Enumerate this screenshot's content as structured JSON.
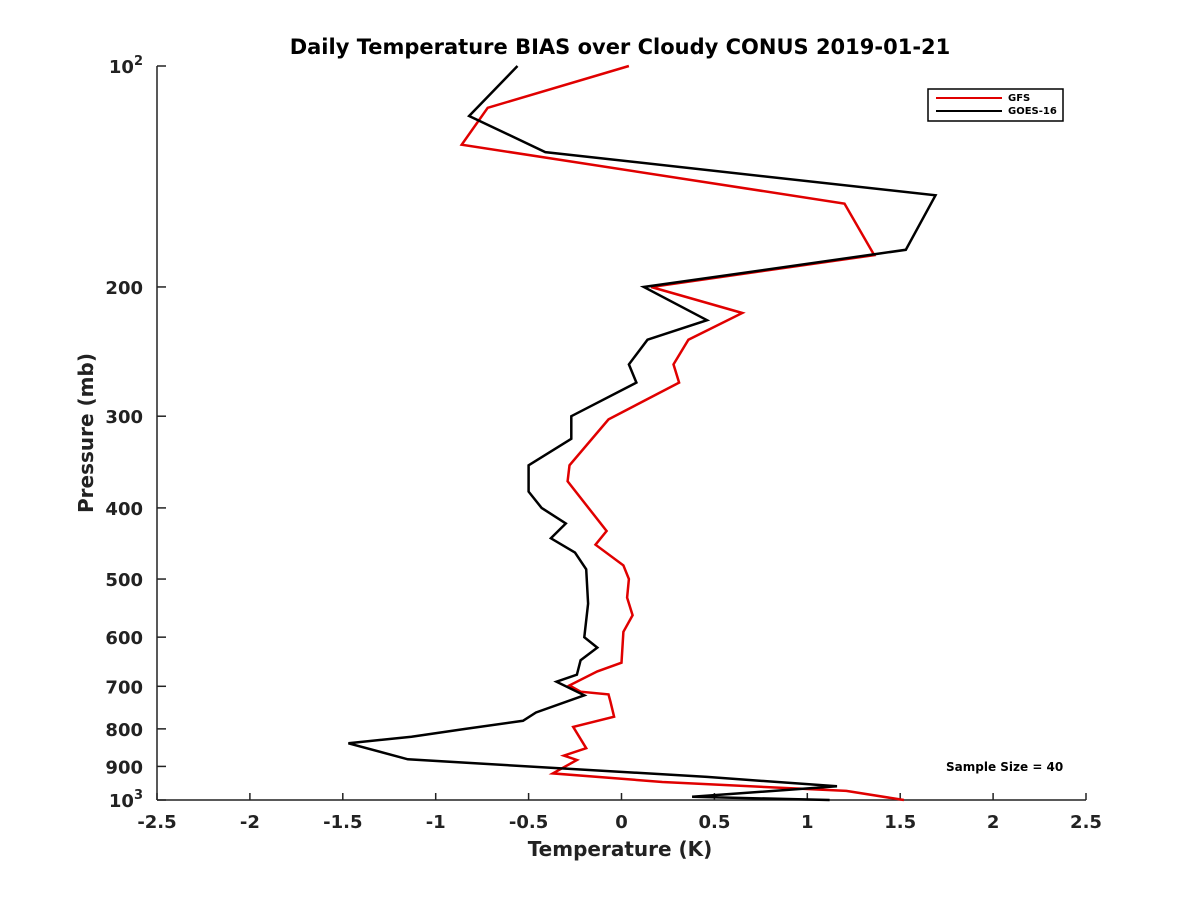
{
  "chart_data": {
    "type": "line",
    "title": "Daily Temperature BIAS over Cloudy CONUS 2019-01-21",
    "xlabel": "Temperature (K)",
    "ylabel": "Pressure (mb)",
    "xlim": [
      -2.5,
      2.5
    ],
    "ylim": [
      100,
      1000
    ],
    "yscale": "log",
    "y_reversed": true,
    "grid": false,
    "legend_position": "top-right",
    "x_ticks": [
      "-2.5",
      "-2",
      "-1.5",
      "-1",
      "-0.5",
      "0",
      "0.5",
      "1",
      "1.5",
      "2",
      "2.5"
    ],
    "x_tick_values": [
      -2.5,
      -2,
      -1.5,
      -1,
      -0.5,
      0,
      0.5,
      1,
      1.5,
      2,
      2.5
    ],
    "y_ticks": [
      {
        "value": 100,
        "base": "10",
        "exp": "2",
        "label": ""
      },
      {
        "value": 200,
        "label": "200"
      },
      {
        "value": 300,
        "label": "300"
      },
      {
        "value": 400,
        "label": "400"
      },
      {
        "value": 500,
        "label": "500"
      },
      {
        "value": 600,
        "label": "600"
      },
      {
        "value": 700,
        "label": "700"
      },
      {
        "value": 800,
        "label": "800"
      },
      {
        "value": 900,
        "label": "900"
      },
      {
        "value": 1000,
        "base": "10",
        "exp": "3",
        "label": ""
      }
    ],
    "annotation": "Sample Size = 40",
    "series": [
      {
        "name": "GFS",
        "color": "#e00000",
        "points": [
          [
            0.04,
            100
          ],
          [
            -0.72,
            114
          ],
          [
            -0.86,
            128
          ],
          [
            1.2,
            154
          ],
          [
            1.36,
            181
          ],
          [
            0.16,
            200
          ],
          [
            0.65,
            217
          ],
          [
            0.36,
            236
          ],
          [
            0.28,
            255
          ],
          [
            0.31,
            270
          ],
          [
            -0.07,
            303
          ],
          [
            -0.28,
            350
          ],
          [
            -0.29,
            368
          ],
          [
            -0.08,
            430
          ],
          [
            -0.14,
            449
          ],
          [
            0.01,
            479
          ],
          [
            0.04,
            500
          ],
          [
            0.03,
            530
          ],
          [
            0.06,
            560
          ],
          [
            0.01,
            590
          ],
          [
            0.0,
            650
          ],
          [
            -0.13,
            668
          ],
          [
            -0.28,
            698
          ],
          [
            -0.22,
            712
          ],
          [
            -0.07,
            718
          ],
          [
            -0.06,
            734
          ],
          [
            -0.04,
            770
          ],
          [
            -0.26,
            795
          ],
          [
            -0.19,
            850
          ],
          [
            -0.31,
            870
          ],
          [
            -0.24,
            882
          ],
          [
            -0.37,
            920
          ],
          [
            0.22,
            945
          ],
          [
            1.21,
            972
          ],
          [
            1.52,
            1000
          ]
        ]
      },
      {
        "name": "GOES-16",
        "color": "#000000",
        "points": [
          [
            -0.56,
            100
          ],
          [
            -0.82,
            117
          ],
          [
            -0.41,
            131
          ],
          [
            1.69,
            150
          ],
          [
            1.53,
            178
          ],
          [
            0.12,
            200
          ],
          [
            0.46,
            222
          ],
          [
            0.14,
            236
          ],
          [
            0.04,
            255
          ],
          [
            0.08,
            270
          ],
          [
            -0.27,
            300
          ],
          [
            -0.27,
            322
          ],
          [
            -0.5,
            350
          ],
          [
            -0.5,
            380
          ],
          [
            -0.43,
            400
          ],
          [
            -0.3,
            420
          ],
          [
            -0.38,
            440
          ],
          [
            -0.25,
            460
          ],
          [
            -0.19,
            485
          ],
          [
            -0.18,
            540
          ],
          [
            -0.2,
            600
          ],
          [
            -0.13,
            620
          ],
          [
            -0.22,
            645
          ],
          [
            -0.24,
            675
          ],
          [
            -0.35,
            690
          ],
          [
            -0.2,
            720
          ],
          [
            -0.46,
            760
          ],
          [
            -0.53,
            780
          ],
          [
            -0.84,
            800
          ],
          [
            -1.13,
            820
          ],
          [
            -1.47,
            837
          ],
          [
            -1.15,
            880
          ],
          [
            0.46,
            930
          ],
          [
            1.16,
            958
          ],
          [
            0.38,
            990
          ],
          [
            1.12,
            1000
          ]
        ]
      }
    ]
  }
}
